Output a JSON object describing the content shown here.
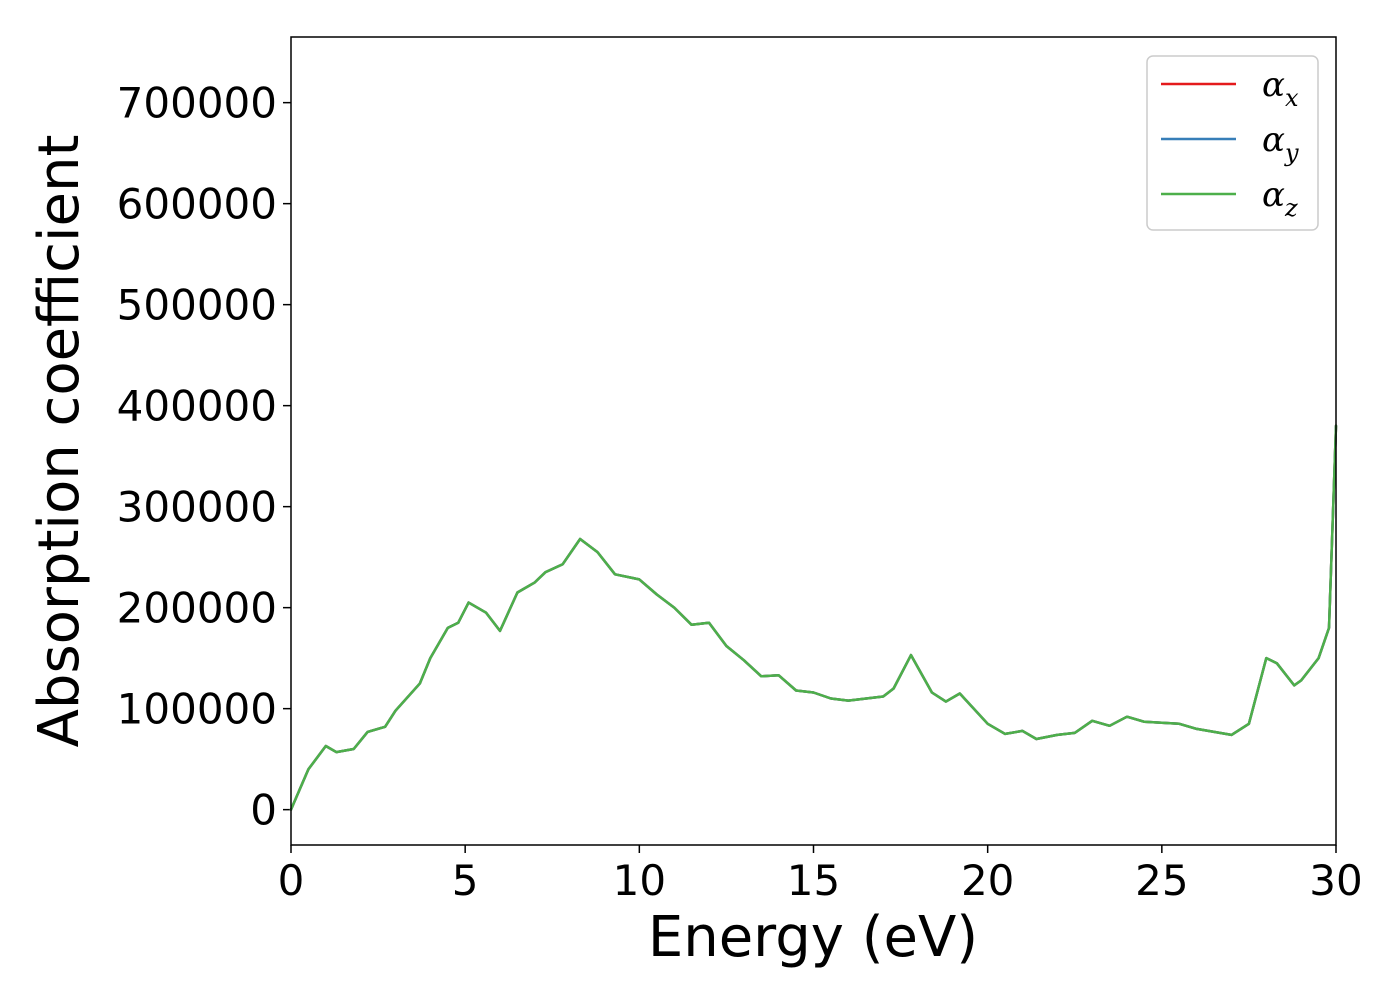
{
  "chart_data": {
    "type": "line",
    "title": "",
    "xlabel": "Energy (eV)",
    "ylabel": "Absorption coefficient",
    "xlim": [
      0,
      30
    ],
    "ylim": [
      -35000,
      765000
    ],
    "x_ticks": [
      0,
      5,
      10,
      15,
      20,
      25,
      30
    ],
    "y_ticks": [
      0,
      100000,
      200000,
      300000,
      400000,
      500000,
      600000,
      700000
    ],
    "grid": false,
    "legend_position": "top-right",
    "series": [
      {
        "name": "α",
        "subscript": "x",
        "color": "#e41a1c",
        "x": [
          0,
          0.5,
          1.0,
          1.3,
          1.8,
          2.2,
          2.7,
          3.0,
          3.7,
          4.0,
          4.5,
          4.8,
          5.1,
          5.6,
          6.0,
          6.5,
          7.0,
          7.3,
          7.8,
          8.3,
          8.8,
          9.3,
          10.0,
          10.5,
          11.0,
          11.5,
          12.0,
          12.5,
          13.0,
          13.5,
          14.0,
          14.5,
          15.0,
          15.5,
          16.0,
          17.0,
          17.3,
          17.8,
          18.4,
          18.8,
          19.2,
          20.0,
          20.5,
          21.0,
          21.4,
          22.0,
          22.5,
          23.0,
          23.5,
          24.0,
          24.5,
          25.0,
          25.5,
          26.0,
          26.5,
          27.0,
          27.5,
          28.0,
          28.3,
          28.8,
          29.0,
          29.5,
          29.8,
          30.0
        ],
        "values": [
          0,
          40000,
          63000,
          57000,
          60000,
          77000,
          82000,
          98000,
          125000,
          150000,
          180000,
          185000,
          205000,
          195000,
          177000,
          215000,
          225000,
          235000,
          243000,
          268000,
          255000,
          233000,
          228000,
          213000,
          200000,
          183000,
          185000,
          162000,
          148000,
          132000,
          133000,
          118000,
          116000,
          110000,
          108000,
          112000,
          120000,
          153000,
          116000,
          107000,
          115000,
          85000,
          75000,
          78000,
          70000,
          74000,
          76000,
          88000,
          83000,
          92000,
          87000,
          86000,
          85000,
          80000,
          77000,
          74000,
          85000,
          150000,
          145000,
          123000,
          128000,
          150000,
          180000,
          380000
        ]
      },
      {
        "name": "α",
        "subscript": "y",
        "color": "#377eb8",
        "x": [
          0,
          0.5,
          1.0,
          1.3,
          1.8,
          2.2,
          2.7,
          3.0,
          3.7,
          4.0,
          4.5,
          4.8,
          5.1,
          5.6,
          6.0,
          6.5,
          7.0,
          7.3,
          7.8,
          8.3,
          8.8,
          9.3,
          10.0,
          10.5,
          11.0,
          11.5,
          12.0,
          12.5,
          13.0,
          13.5,
          14.0,
          14.5,
          15.0,
          15.5,
          16.0,
          17.0,
          17.3,
          17.8,
          18.4,
          18.8,
          19.2,
          20.0,
          20.5,
          21.0,
          21.4,
          22.0,
          22.5,
          23.0,
          23.5,
          24.0,
          24.5,
          25.0,
          25.5,
          26.0,
          26.5,
          27.0,
          27.5,
          28.0,
          28.3,
          28.8,
          29.0,
          29.5,
          29.8,
          30.0
        ],
        "values": [
          0,
          40000,
          63000,
          57000,
          60000,
          77000,
          82000,
          98000,
          125000,
          150000,
          180000,
          185000,
          205000,
          195000,
          177000,
          215000,
          225000,
          235000,
          243000,
          268000,
          255000,
          233000,
          228000,
          213000,
          200000,
          183000,
          185000,
          162000,
          148000,
          132000,
          133000,
          118000,
          116000,
          110000,
          108000,
          112000,
          120000,
          153000,
          116000,
          107000,
          115000,
          85000,
          75000,
          78000,
          70000,
          74000,
          76000,
          88000,
          83000,
          92000,
          87000,
          86000,
          85000,
          80000,
          77000,
          74000,
          85000,
          150000,
          145000,
          123000,
          128000,
          150000,
          180000,
          380000
        ]
      },
      {
        "name": "α",
        "subscript": "z",
        "color": "#4daf4a",
        "x": [
          0,
          0.5,
          1.0,
          1.3,
          1.8,
          2.2,
          2.7,
          3.0,
          3.7,
          4.0,
          4.5,
          4.8,
          5.1,
          5.6,
          6.0,
          6.5,
          7.0,
          7.3,
          7.8,
          8.3,
          8.8,
          9.3,
          10.0,
          10.5,
          11.0,
          11.5,
          12.0,
          12.5,
          13.0,
          13.5,
          14.0,
          14.5,
          15.0,
          15.5,
          16.0,
          17.0,
          17.3,
          17.8,
          18.4,
          18.8,
          19.2,
          20.0,
          20.5,
          21.0,
          21.4,
          22.0,
          22.5,
          23.0,
          23.5,
          24.0,
          24.5,
          25.0,
          25.5,
          26.0,
          26.5,
          27.0,
          27.5,
          28.0,
          28.3,
          28.8,
          29.0,
          29.5,
          29.8,
          30.0
        ],
        "values": [
          0,
          40000,
          63000,
          57000,
          60000,
          77000,
          82000,
          98000,
          125000,
          150000,
          180000,
          185000,
          205000,
          195000,
          177000,
          215000,
          225000,
          235000,
          243000,
          268000,
          255000,
          233000,
          228000,
          213000,
          200000,
          183000,
          185000,
          162000,
          148000,
          132000,
          133000,
          118000,
          116000,
          110000,
          108000,
          112000,
          120000,
          153000,
          116000,
          107000,
          115000,
          85000,
          75000,
          78000,
          70000,
          74000,
          76000,
          88000,
          83000,
          92000,
          87000,
          86000,
          85000,
          80000,
          77000,
          74000,
          85000,
          150000,
          145000,
          123000,
          128000,
          150000,
          180000,
          380000
        ]
      }
    ]
  }
}
